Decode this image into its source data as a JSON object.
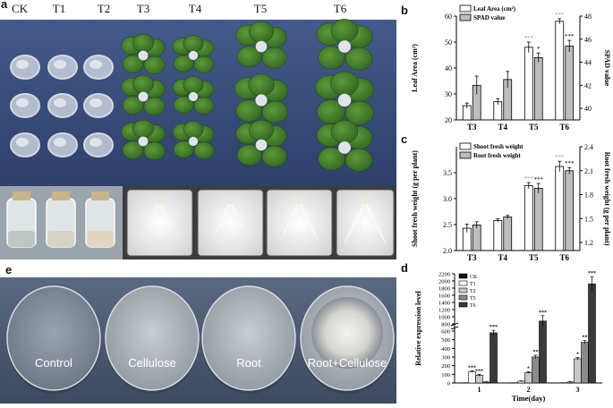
{
  "panel_a": {
    "letter": "a",
    "groups": [
      "CK",
      "T1",
      "T2",
      "T3",
      "T4",
      "T5",
      "T6"
    ]
  },
  "panel_e": {
    "letter": "e",
    "plates": [
      "Control",
      "Cellulose",
      "Root",
      "Root+Cellulose"
    ]
  },
  "chart_data": [
    {
      "panel": "b",
      "type": "bar",
      "categories": [
        "T3",
        "T4",
        "T5",
        "T6"
      ],
      "series": [
        {
          "name": "Leaf Area (cm²)",
          "axis": "left",
          "values": [
            25.5,
            27.0,
            48.0,
            58.0
          ],
          "errors": [
            1,
            1.2,
            2,
            1
          ],
          "significance": [
            "",
            "",
            "***",
            "***"
          ],
          "color": "#ffffff"
        },
        {
          "name": "SPAD value",
          "axis": "right",
          "values": [
            42.0,
            42.5,
            44.4,
            45.4
          ],
          "errors": [
            0.8,
            0.7,
            0.4,
            0.5
          ],
          "significance": [
            "",
            "",
            "*",
            "***"
          ],
          "color": "#bdbdbd"
        }
      ],
      "ylabel": "Leaf Area (cm²)",
      "y2label": "SPAD value",
      "ylim": [
        20,
        60
      ],
      "y2lim": [
        39,
        48
      ],
      "yticks": [
        20,
        30,
        40,
        50,
        60
      ],
      "y2ticks": [
        40,
        42,
        44,
        46,
        48
      ],
      "legend": [
        "Leaf Area (cm²)",
        "SPAD value"
      ]
    },
    {
      "panel": "c",
      "type": "bar",
      "categories": [
        "T3",
        "T4",
        "T5",
        "T6"
      ],
      "series": [
        {
          "name": "Shoot fresh weight",
          "axis": "left",
          "values": [
            2.43,
            2.58,
            3.25,
            3.62
          ],
          "errors": [
            0.08,
            0.03,
            0.06,
            0.1
          ],
          "significance": [
            "",
            "",
            "***",
            "***"
          ],
          "color": "#ffffff"
        },
        {
          "name": "Root fresh weight",
          "axis": "right",
          "values": [
            1.42,
            1.52,
            1.88,
            2.1
          ],
          "errors": [
            0.04,
            0.02,
            0.06,
            0.04
          ],
          "significance": [
            "",
            "",
            "***",
            "***"
          ],
          "color": "#bdbdbd"
        }
      ],
      "ylabel": "Shoot fresh weight (g per plant)",
      "y2label": "Root fresh weight (g per plant)",
      "ylim": [
        2.0,
        4.0
      ],
      "y2lim": [
        1.1,
        2.4
      ],
      "yticks": [
        2.0,
        2.5,
        3.0,
        3.5
      ],
      "y2ticks": [
        1.2,
        1.5,
        1.8,
        2.1,
        2.4
      ],
      "legend": [
        "Shoot fresh weight",
        "Root fresh weight"
      ]
    },
    {
      "panel": "d",
      "type": "bar",
      "categories": [
        "1",
        "2",
        "3"
      ],
      "series": [
        {
          "name": "CK",
          "values": [
            3,
            3,
            3
          ],
          "errors": [
            0,
            0,
            0
          ],
          "significance": [
            "",
            "",
            ""
          ],
          "color": "#111111"
        },
        {
          "name": "T1",
          "values": [
            130,
            20,
            10
          ],
          "errors": [
            10,
            5,
            5
          ],
          "significance": [
            "***",
            "",
            ""
          ],
          "color": "#ffffff"
        },
        {
          "name": "T2",
          "values": [
            90,
            120,
            280
          ],
          "errors": [
            10,
            10,
            15
          ],
          "significance": [
            "***",
            "*",
            "*"
          ],
          "color": "#c8c8c8"
        },
        {
          "name": "T5",
          "values": [
            10,
            300,
            470
          ],
          "errors": [
            5,
            20,
            20
          ],
          "significance": [
            "",
            "**",
            "**"
          ],
          "color": "#8a8a8a"
        },
        {
          "name": "T6",
          "values": [
            580,
            880,
            1920
          ],
          "errors": [
            40,
            150,
            200
          ],
          "significance": [
            "***",
            "***",
            "***"
          ],
          "color": "#3a3a3a"
        }
      ],
      "xlabel": "Time(day)",
      "ylabel": "Relative expression level",
      "ylim": [
        0,
        2200
      ],
      "yticks": [
        0,
        100,
        200,
        300,
        400,
        500,
        600,
        800,
        1000,
        1200,
        1400,
        1600,
        1800,
        2000,
        2200
      ],
      "axis_break": [
        600,
        800
      ],
      "legend": [
        "CK",
        "T1",
        "T2",
        "T5",
        "T6"
      ]
    }
  ]
}
